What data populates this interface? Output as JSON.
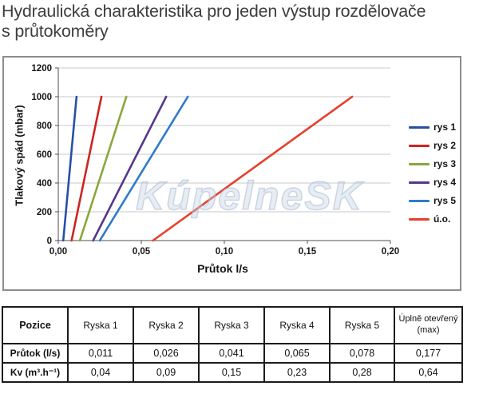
{
  "header": {
    "title_line1": "Hydraulická charakteristika pro jeden výstup rozdělovače",
    "title_line2": "s průtokoměry"
  },
  "watermark": "KúpelneSK",
  "chart_data": {
    "type": "line",
    "title": "",
    "xlabel": "Průtok l/s",
    "ylabel": "Tlakový spád (mbar)",
    "xlim": [
      0,
      0.2
    ],
    "ylim": [
      0,
      1200
    ],
    "x_ticks": [
      "0,00",
      "0,05",
      "0,10",
      "0,15",
      "0,20"
    ],
    "x_tick_values": [
      0,
      0.05,
      0.1,
      0.15,
      0.2
    ],
    "y_ticks": [
      0,
      200,
      400,
      600,
      800,
      1000,
      1200
    ],
    "grid": "horizontal-only",
    "legend_position": "right",
    "colors": {
      "grid": "#c9c9c9",
      "axis": "#4f4f4f",
      "tick_text": "#161616"
    },
    "series": [
      {
        "name": "rys 1",
        "color": "#2750a5",
        "points": [
          [
            0.003,
            0
          ],
          [
            0.011,
            1000
          ]
        ]
      },
      {
        "name": "rys 2",
        "color": "#ce2420",
        "points": [
          [
            0.008,
            0
          ],
          [
            0.026,
            1000
          ]
        ]
      },
      {
        "name": "rys 3",
        "color": "#8ba63b",
        "points": [
          [
            0.013,
            0
          ],
          [
            0.041,
            1000
          ]
        ]
      },
      {
        "name": "rys 4",
        "color": "#55378b",
        "points": [
          [
            0.021,
            0
          ],
          [
            0.065,
            1000
          ]
        ]
      },
      {
        "name": "rys 5",
        "color": "#2f7bc8",
        "points": [
          [
            0.025,
            0
          ],
          [
            0.078,
            1000
          ]
        ]
      },
      {
        "name": "ú.o.",
        "color": "#e6402c",
        "points": [
          [
            0.057,
            0
          ],
          [
            0.177,
            1000
          ]
        ]
      }
    ]
  },
  "table": {
    "headers": [
      "Pozice",
      "Ryska 1",
      "Ryska 2",
      "Ryska 3",
      "Ryska 4",
      "Ryska 5",
      "Úplně otevřený (max)"
    ],
    "rows": [
      {
        "label": "Průtok (l/s)",
        "values": [
          "0,011",
          "0,026",
          "0,041",
          "0,065",
          "0,078",
          "0,177"
        ]
      },
      {
        "label": "Kv (m³.h⁻¹)",
        "values": [
          "0,04",
          "0,09",
          "0,15",
          "0,23",
          "0,28",
          "0,64"
        ]
      }
    ]
  }
}
